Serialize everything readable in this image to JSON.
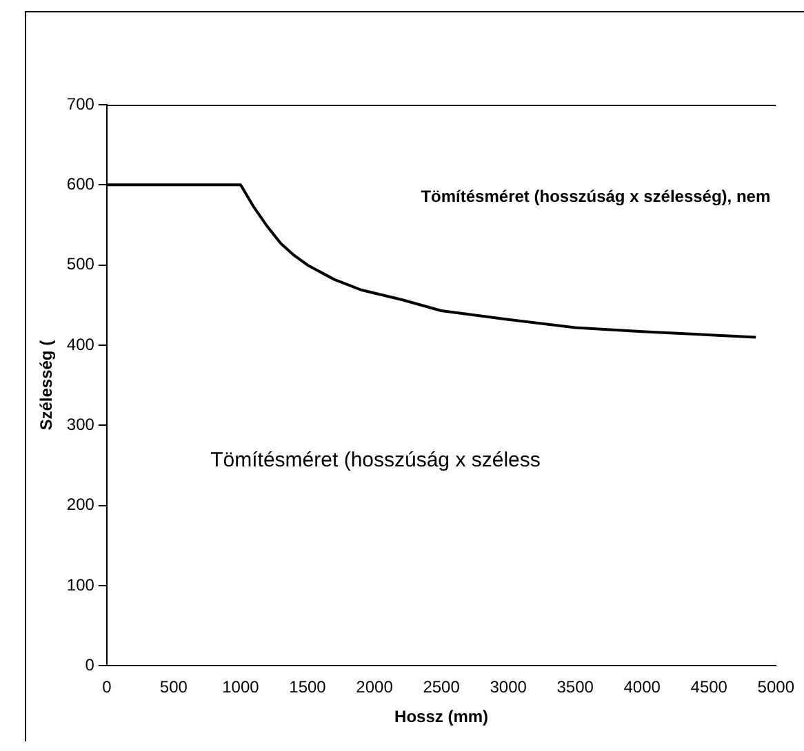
{
  "chart_data": {
    "type": "line",
    "xlabel": "Hossz (mm)",
    "ylabel": "Szélesség (",
    "annotations": [
      "Tömítésméret (hosszúság x szélesség), nem",
      "Tömítésméret (hosszúság x széless"
    ],
    "series": [
      {
        "color": "#000000",
        "x": [
          0,
          500,
          1000,
          1100,
          1200,
          1300,
          1400,
          1500,
          1700,
          1900,
          2200,
          2500,
          3000,
          3500,
          4000,
          4850
        ],
        "values": [
          600,
          600,
          600,
          572,
          548,
          527,
          512,
          500,
          482,
          469,
          457,
          443,
          432,
          422,
          417,
          410
        ]
      }
    ],
    "xlim": [
      0,
      5000
    ],
    "xticks": [
      0,
      500,
      1000,
      1500,
      2000,
      2500,
      3000,
      3500,
      4000,
      4500,
      5000
    ],
    "ylim": [
      0,
      700
    ],
    "yticks": [
      0,
      100,
      200,
      300,
      400,
      500,
      600,
      700
    ],
    "grid": false,
    "legend": false,
    "marker": "none",
    "line_style": "solid"
  }
}
